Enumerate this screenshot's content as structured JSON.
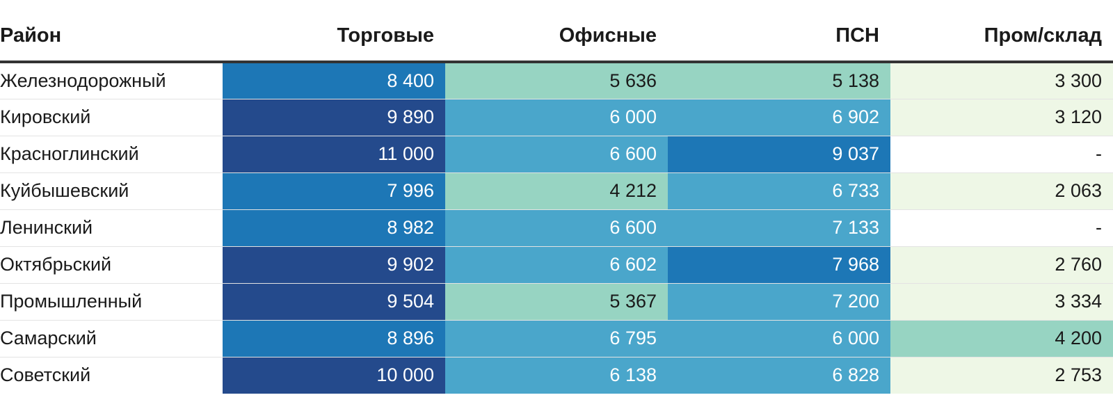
{
  "chart_data": {
    "type": "table",
    "columns": [
      "Район",
      "Торговые",
      "Офисные",
      "ПСН",
      "Пром/склад"
    ],
    "rows": [
      [
        "Железнодорожный",
        "8 400",
        "5 636",
        "5 138",
        "3 300"
      ],
      [
        "Кировский",
        "9 890",
        "6 000",
        "6 902",
        "3 120"
      ],
      [
        "Красноглинский",
        "11 000",
        "6 600",
        "9 037",
        "-"
      ],
      [
        "Куйбышевский",
        "7 996",
        "4 212",
        "6 733",
        "2 063"
      ],
      [
        "Ленинский",
        "8 982",
        "6 600",
        "7 133",
        "-"
      ],
      [
        "Октябрьский",
        "9 902",
        "6 602",
        "7 968",
        "2 760"
      ],
      [
        "Промышленный",
        "9 504",
        "5 367",
        "7 200",
        "3 334"
      ],
      [
        "Самарский",
        "8 896",
        "6 795",
        "6 000",
        "4 200"
      ],
      [
        "Советский",
        "10 000",
        "6 138",
        "6 828",
        "2 753"
      ]
    ],
    "color_scale": {
      "dark": "#244a8c",
      "mid_dark": "#1d77b6",
      "mid": "#4aa6cb",
      "light": "#97d4c2",
      "lightest": "#eef7e6",
      "none": "#ffffff"
    }
  }
}
